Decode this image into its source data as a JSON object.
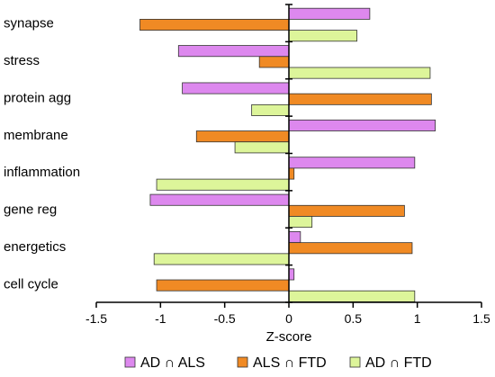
{
  "chart_data": {
    "type": "bar",
    "orientation": "horizontal",
    "categories": [
      "synapse",
      "stress",
      "protein agg",
      "membrane",
      "inflammation",
      "gene reg",
      "energetics",
      "cell cycle"
    ],
    "series": [
      {
        "name": "AD ∩ ALS",
        "color": "#dd88ee",
        "values": [
          0.63,
          -0.86,
          -0.83,
          1.14,
          0.98,
          -1.08,
          0.09,
          0.04
        ]
      },
      {
        "name": "ALS ∩ FTD",
        "color": "#f08a24",
        "values": [
          -1.16,
          -0.23,
          1.11,
          -0.72,
          0.04,
          0.9,
          0.96,
          -1.03
        ]
      },
      {
        "name": "AD ∩ FTD",
        "color": "#ddf59a",
        "values": [
          0.53,
          1.1,
          -0.29,
          -0.42,
          -1.03,
          0.18,
          -1.05,
          0.98
        ]
      }
    ],
    "xlabel": "Z-score",
    "xlim": [
      -1.5,
      1.5
    ],
    "xticks": [
      -1.5,
      -1,
      -0.5,
      0,
      0.5,
      1,
      1.5
    ],
    "xtick_labels": [
      "-1.5",
      "-1",
      "-0.5",
      "0",
      "0.5",
      "1",
      "1.5"
    ],
    "grid": false,
    "legend_position": "bottom"
  }
}
